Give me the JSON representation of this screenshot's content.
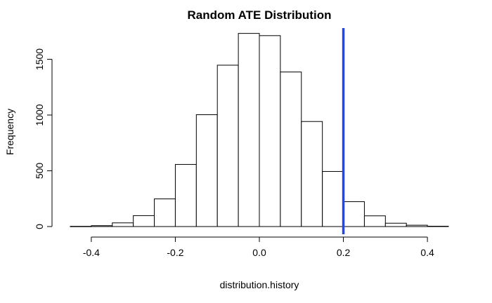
{
  "chart_data": {
    "type": "bar",
    "title": "Random ATE Distribution",
    "xlabel": "distribution.history",
    "ylabel": "Frequency",
    "x_ticks": [
      -0.4,
      -0.2,
      0.0,
      0.2,
      0.4
    ],
    "x_tick_labels": [
      "-0.4",
      "-0.2",
      "0.0",
      "0.2",
      "0.4"
    ],
    "y_ticks": [
      0,
      500,
      1000,
      1500
    ],
    "y_tick_labels": [
      "0",
      "500",
      "1000",
      "1500"
    ],
    "xlim": [
      -0.45,
      0.45
    ],
    "ylim": [
      0,
      1780
    ],
    "bin_width": 0.05,
    "bins": [
      {
        "start": -0.45,
        "end": -0.4,
        "count": 2
      },
      {
        "start": -0.4,
        "end": -0.35,
        "count": 8
      },
      {
        "start": -0.35,
        "end": -0.3,
        "count": 33
      },
      {
        "start": -0.3,
        "end": -0.25,
        "count": 98
      },
      {
        "start": -0.25,
        "end": -0.2,
        "count": 248
      },
      {
        "start": -0.2,
        "end": -0.15,
        "count": 557
      },
      {
        "start": -0.15,
        "end": -0.1,
        "count": 1003
      },
      {
        "start": -0.1,
        "end": -0.05,
        "count": 1447
      },
      {
        "start": -0.05,
        "end": 0.0,
        "count": 1732
      },
      {
        "start": 0.0,
        "end": 0.05,
        "count": 1712
      },
      {
        "start": 0.05,
        "end": 0.1,
        "count": 1386
      },
      {
        "start": 0.1,
        "end": 0.15,
        "count": 942
      },
      {
        "start": 0.15,
        "end": 0.2,
        "count": 494
      },
      {
        "start": 0.2,
        "end": 0.25,
        "count": 223
      },
      {
        "start": 0.25,
        "end": 0.3,
        "count": 96
      },
      {
        "start": 0.3,
        "end": 0.35,
        "count": 30
      },
      {
        "start": 0.35,
        "end": 0.4,
        "count": 12
      },
      {
        "start": 0.4,
        "end": 0.45,
        "count": 3
      }
    ],
    "reference_line": {
      "x": 0.2,
      "color": "#2146f0"
    },
    "bar_fill": "#ffffff",
    "bar_stroke": "#000000",
    "grid": false
  }
}
